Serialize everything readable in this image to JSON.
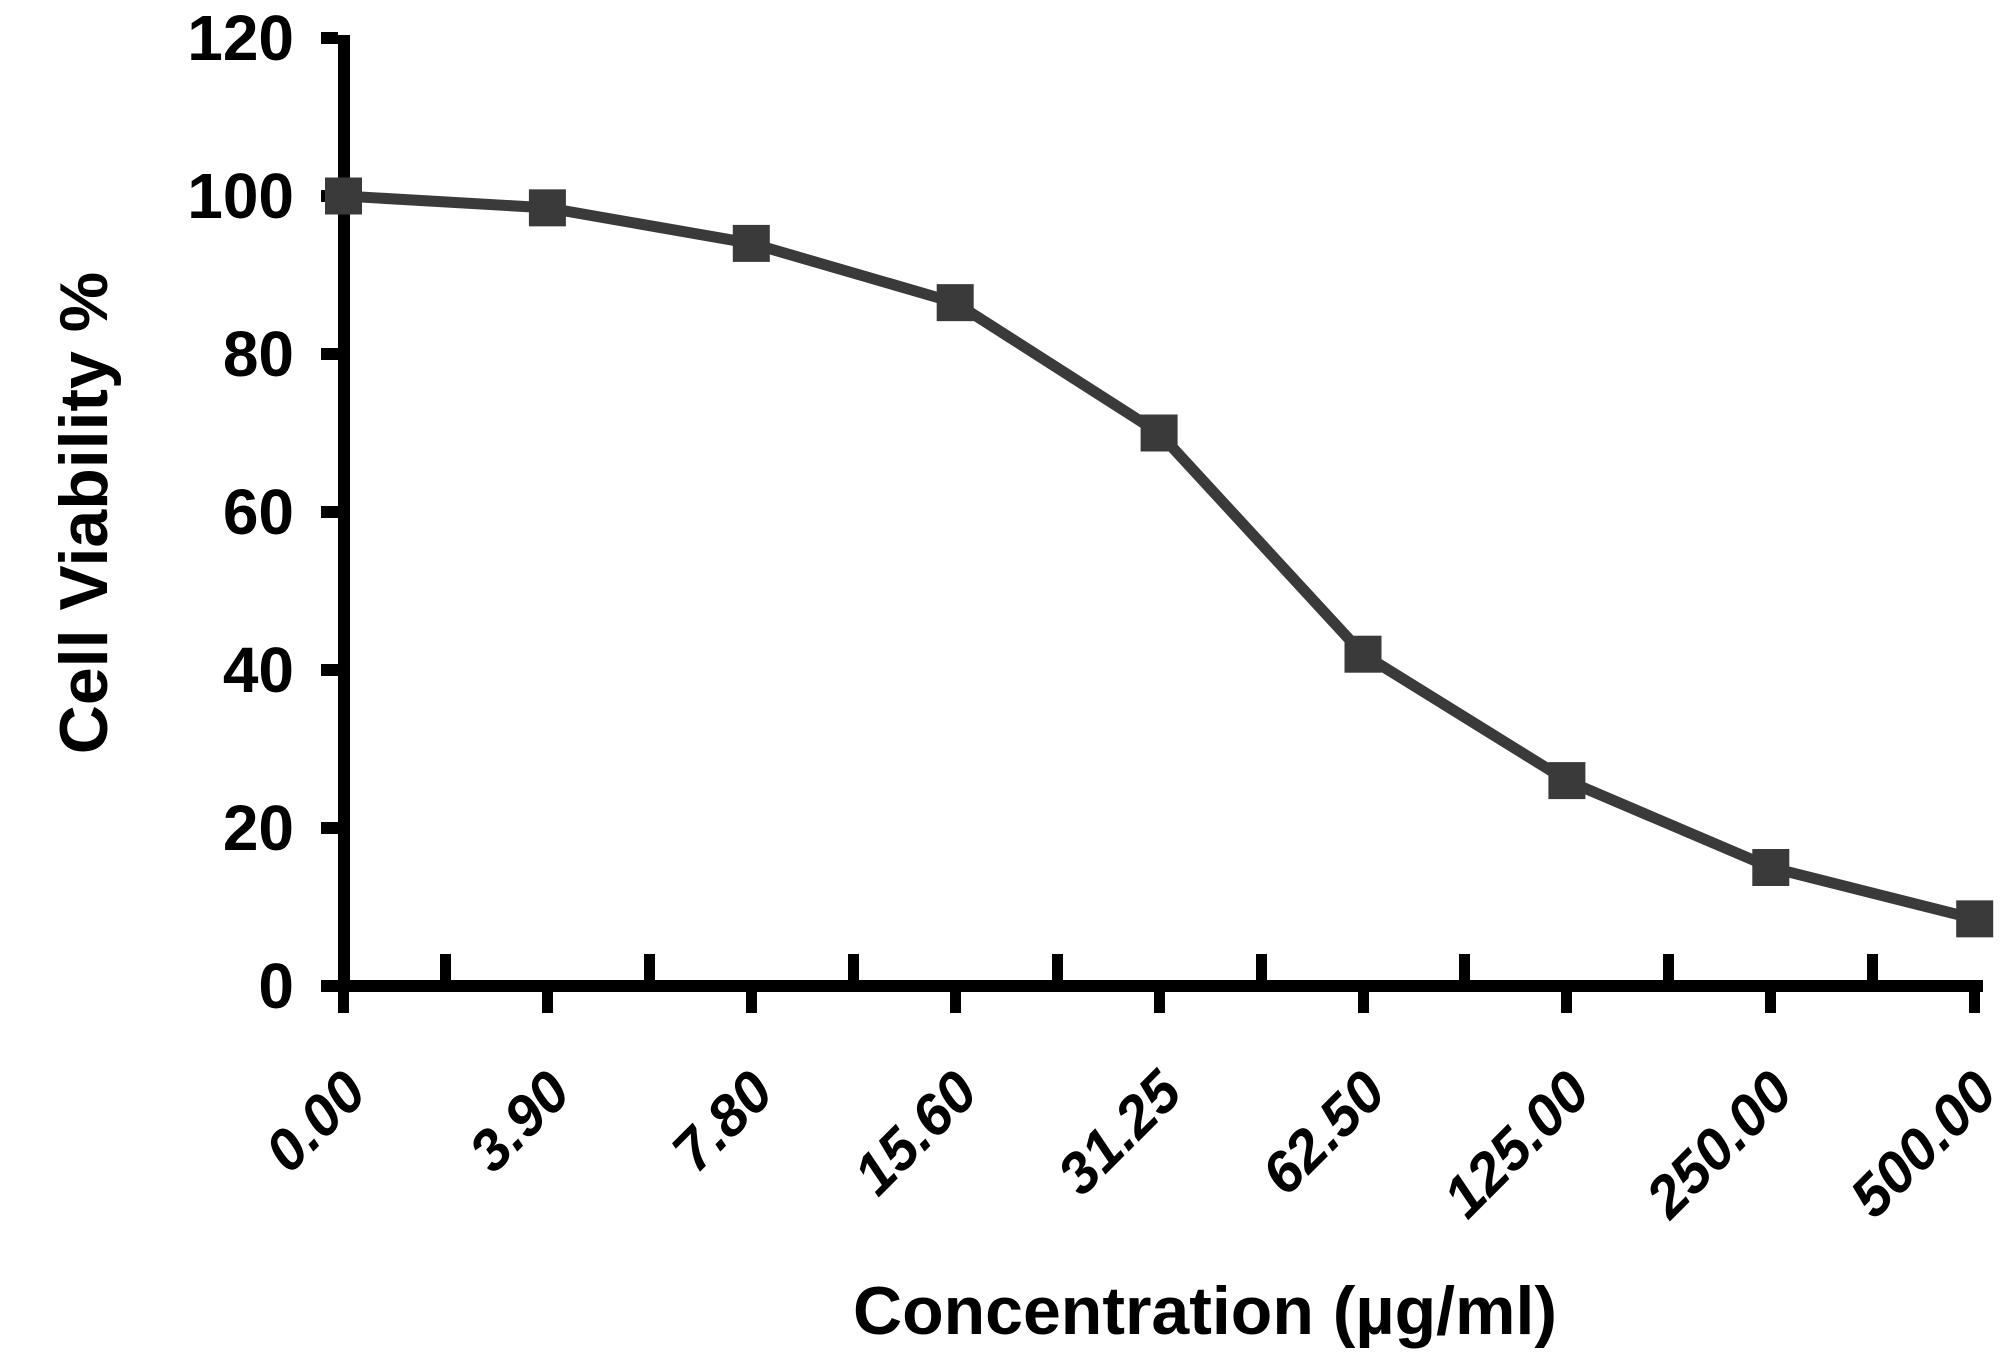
{
  "figure": {
    "background_color": "#ffffff"
  },
  "chart_data": {
    "type": "line",
    "title": "",
    "xlabel": "Concentration (µg/ml)",
    "ylabel": "Cell Viability %",
    "categories": [
      "0.00",
      "3.90",
      "7.80",
      "15.60",
      "31.25",
      "62.50",
      "125.00",
      "250.00",
      "500.00"
    ],
    "series": [
      {
        "name": "Cell Viability %",
        "values": [
          100,
          98.5,
          94,
          86.5,
          70,
          42,
          26,
          15,
          8.5
        ]
      }
    ],
    "ylim": [
      0,
      120
    ],
    "y_ticks": [
      120,
      100,
      80,
      60,
      40,
      20,
      0
    ],
    "x_tick_label_rotation_deg": -45,
    "grid": false,
    "legend_position": "none",
    "marker": "filled-square",
    "series_color": "#3a3a3a",
    "axis_color": "#000000",
    "text_color": "#000000"
  }
}
